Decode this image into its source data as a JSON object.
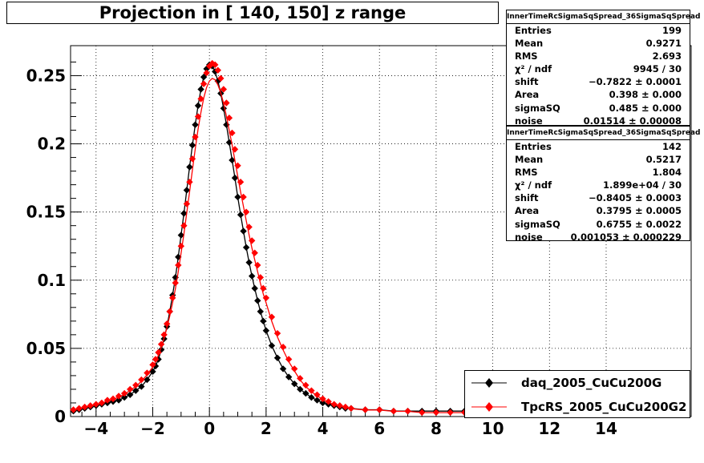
{
  "title": "Projection in [ 140, 150] z range",
  "stats_boxes": [
    {
      "header": "InnerTimeRcSigmaSqSpread_36SigmaSqSpread",
      "rows": [
        {
          "k": "Entries",
          "v": "199"
        },
        {
          "k": "Mean",
          "v": "0.9271"
        },
        {
          "k": "RMS",
          "v": "2.693"
        },
        {
          "k": "χ² / ndf",
          "v": "9945 / 30"
        },
        {
          "k": "shift",
          "v": "−0.7822 ± 0.0001"
        },
        {
          "k": "Area",
          "v": "0.398 ± 0.000"
        },
        {
          "k": "sigmaSQ",
          "v": "0.485 ± 0.000"
        },
        {
          "k": "noise",
          "v": "0.01514 ± 0.00008"
        }
      ]
    },
    {
      "header": "InnerTimeRcSigmaSqSpread_36SigmaSqSpread",
      "rows": [
        {
          "k": "Entries",
          "v": "142"
        },
        {
          "k": "Mean",
          "v": "0.5217"
        },
        {
          "k": "RMS",
          "v": "1.804"
        },
        {
          "k": "χ² / ndf",
          "v": "1.899e+04 / 30"
        },
        {
          "k": "shift",
          "v": "−0.8405 ± 0.0003"
        },
        {
          "k": "Area",
          "v": "0.3795 ± 0.0005"
        },
        {
          "k": "sigmaSQ",
          "v": "0.6755 ± 0.0022"
        },
        {
          "k": "noise",
          "v": "0.001053 ± 0.000229"
        }
      ]
    }
  ],
  "legend": [
    {
      "label": "daq_2005_CuCu200G",
      "color": "#000000"
    },
    {
      "label": "TpcRS_2005_CuCu200G2",
      "color": "#ff0000"
    }
  ],
  "colors": {
    "daq": "#000000",
    "tpcrs": "#ff0000"
  },
  "chart_data": {
    "type": "scatter",
    "title": "Projection in [ 140, 150] z range",
    "xlim": [
      -4.9,
      17.0
    ],
    "ylim": [
      0,
      0.272
    ],
    "x_ticks": [
      -4,
      -2,
      0,
      2,
      4,
      6,
      8,
      10,
      12,
      14
    ],
    "x_tick_labels": [
      "−4",
      "−2",
      "0",
      "2",
      "4",
      "6",
      "8",
      "10",
      "12",
      "14"
    ],
    "y_ticks": [
      0,
      0.05,
      0.1,
      0.15,
      0.2,
      0.25
    ],
    "y_tick_labels": [
      "0",
      "0.05",
      "0.1",
      "0.15",
      "0.2",
      "0.25"
    ],
    "grid": true,
    "legend_position": "bottom-right",
    "series": [
      {
        "name": "daq_2005_CuCu200G",
        "color": "#000000",
        "marker": "diamond",
        "fit_peak": 0.258,
        "points": [
          [
            -4.8,
            0.004
          ],
          [
            -4.6,
            0.005
          ],
          [
            -4.4,
            0.006
          ],
          [
            -4.2,
            0.007
          ],
          [
            -4.0,
            0.008
          ],
          [
            -3.8,
            0.009
          ],
          [
            -3.6,
            0.01
          ],
          [
            -3.4,
            0.011
          ],
          [
            -3.2,
            0.012
          ],
          [
            -3.0,
            0.014
          ],
          [
            -2.8,
            0.016
          ],
          [
            -2.6,
            0.019
          ],
          [
            -2.4,
            0.022
          ],
          [
            -2.2,
            0.027
          ],
          [
            -2.0,
            0.033
          ],
          [
            -1.9,
            0.037
          ],
          [
            -1.8,
            0.042
          ],
          [
            -1.7,
            0.049
          ],
          [
            -1.6,
            0.057
          ],
          [
            -1.5,
            0.066
          ],
          [
            -1.4,
            0.077
          ],
          [
            -1.3,
            0.089
          ],
          [
            -1.2,
            0.102
          ],
          [
            -1.1,
            0.117
          ],
          [
            -1.0,
            0.133
          ],
          [
            -0.9,
            0.149
          ],
          [
            -0.8,
            0.166
          ],
          [
            -0.7,
            0.183
          ],
          [
            -0.6,
            0.199
          ],
          [
            -0.5,
            0.214
          ],
          [
            -0.4,
            0.228
          ],
          [
            -0.3,
            0.24
          ],
          [
            -0.2,
            0.249
          ],
          [
            -0.1,
            0.255
          ],
          [
            0.0,
            0.258
          ],
          [
            0.1,
            0.257
          ],
          [
            0.2,
            0.253
          ],
          [
            0.3,
            0.246
          ],
          [
            0.4,
            0.237
          ],
          [
            0.5,
            0.226
          ],
          [
            0.6,
            0.214
          ],
          [
            0.7,
            0.201
          ],
          [
            0.8,
            0.188
          ],
          [
            0.9,
            0.175
          ],
          [
            1.0,
            0.161
          ],
          [
            1.1,
            0.148
          ],
          [
            1.2,
            0.136
          ],
          [
            1.3,
            0.124
          ],
          [
            1.4,
            0.113
          ],
          [
            1.5,
            0.103
          ],
          [
            1.6,
            0.094
          ],
          [
            1.7,
            0.085
          ],
          [
            1.8,
            0.077
          ],
          [
            1.9,
            0.07
          ],
          [
            2.0,
            0.063
          ],
          [
            2.2,
            0.052
          ],
          [
            2.4,
            0.043
          ],
          [
            2.6,
            0.035
          ],
          [
            2.8,
            0.029
          ],
          [
            3.0,
            0.024
          ],
          [
            3.2,
            0.02
          ],
          [
            3.4,
            0.017
          ],
          [
            3.6,
            0.014
          ],
          [
            3.8,
            0.012
          ],
          [
            4.0,
            0.01
          ],
          [
            4.2,
            0.009
          ],
          [
            4.4,
            0.008
          ],
          [
            4.6,
            0.007
          ],
          [
            4.8,
            0.006
          ],
          [
            5.0,
            0.006
          ],
          [
            5.5,
            0.005
          ],
          [
            6.0,
            0.005
          ],
          [
            6.5,
            0.004
          ],
          [
            7.0,
            0.004
          ],
          [
            7.5,
            0.004
          ],
          [
            8.0,
            0.004
          ],
          [
            8.5,
            0.004
          ],
          [
            9.0,
            0.004
          ]
        ]
      },
      {
        "name": "TpcRS_2005_CuCu200G2",
        "color": "#ff0000",
        "marker": "diamond",
        "fit_peak": 0.248,
        "points": [
          [
            -4.8,
            0.005
          ],
          [
            -4.6,
            0.006
          ],
          [
            -4.4,
            0.007
          ],
          [
            -4.2,
            0.008
          ],
          [
            -4.0,
            0.009
          ],
          [
            -3.8,
            0.01
          ],
          [
            -3.6,
            0.012
          ],
          [
            -3.4,
            0.013
          ],
          [
            -3.2,
            0.015
          ],
          [
            -3.0,
            0.017
          ],
          [
            -2.8,
            0.02
          ],
          [
            -2.6,
            0.023
          ],
          [
            -2.4,
            0.027
          ],
          [
            -2.2,
            0.032
          ],
          [
            -2.0,
            0.038
          ],
          [
            -1.9,
            0.042
          ],
          [
            -1.8,
            0.047
          ],
          [
            -1.7,
            0.053
          ],
          [
            -1.6,
            0.06
          ],
          [
            -1.5,
            0.068
          ],
          [
            -1.4,
            0.077
          ],
          [
            -1.3,
            0.087
          ],
          [
            -1.2,
            0.098
          ],
          [
            -1.1,
            0.111
          ],
          [
            -1.0,
            0.125
          ],
          [
            -0.9,
            0.14
          ],
          [
            -0.8,
            0.156
          ],
          [
            -0.7,
            0.172
          ],
          [
            -0.6,
            0.189
          ],
          [
            -0.5,
            0.205
          ],
          [
            -0.4,
            0.22
          ],
          [
            -0.3,
            0.233
          ],
          [
            -0.2,
            0.244
          ],
          [
            -0.1,
            0.252
          ],
          [
            0.0,
            0.257
          ],
          [
            0.1,
            0.259
          ],
          [
            0.2,
            0.258
          ],
          [
            0.3,
            0.254
          ],
          [
            0.4,
            0.248
          ],
          [
            0.5,
            0.24
          ],
          [
            0.6,
            0.23
          ],
          [
            0.7,
            0.219
          ],
          [
            0.8,
            0.208
          ],
          [
            0.9,
            0.196
          ],
          [
            1.0,
            0.184
          ],
          [
            1.1,
            0.172
          ],
          [
            1.2,
            0.161
          ],
          [
            1.3,
            0.15
          ],
          [
            1.4,
            0.139
          ],
          [
            1.5,
            0.129
          ],
          [
            1.6,
            0.12
          ],
          [
            1.7,
            0.111
          ],
          [
            1.8,
            0.102
          ],
          [
            1.9,
            0.094
          ],
          [
            2.0,
            0.087
          ],
          [
            2.2,
            0.073
          ],
          [
            2.4,
            0.061
          ],
          [
            2.6,
            0.051
          ],
          [
            2.8,
            0.042
          ],
          [
            3.0,
            0.035
          ],
          [
            3.2,
            0.028
          ],
          [
            3.4,
            0.023
          ],
          [
            3.6,
            0.019
          ],
          [
            3.8,
            0.016
          ],
          [
            4.0,
            0.013
          ],
          [
            4.2,
            0.011
          ],
          [
            4.4,
            0.009
          ],
          [
            4.6,
            0.008
          ],
          [
            4.8,
            0.007
          ],
          [
            5.0,
            0.006
          ],
          [
            5.5,
            0.005
          ],
          [
            6.0,
            0.005
          ],
          [
            6.5,
            0.004
          ],
          [
            7.0,
            0.004
          ],
          [
            7.5,
            0.003
          ],
          [
            8.0,
            0.003
          ],
          [
            8.5,
            0.003
          ],
          [
            9.0,
            0.003
          ]
        ]
      }
    ]
  }
}
